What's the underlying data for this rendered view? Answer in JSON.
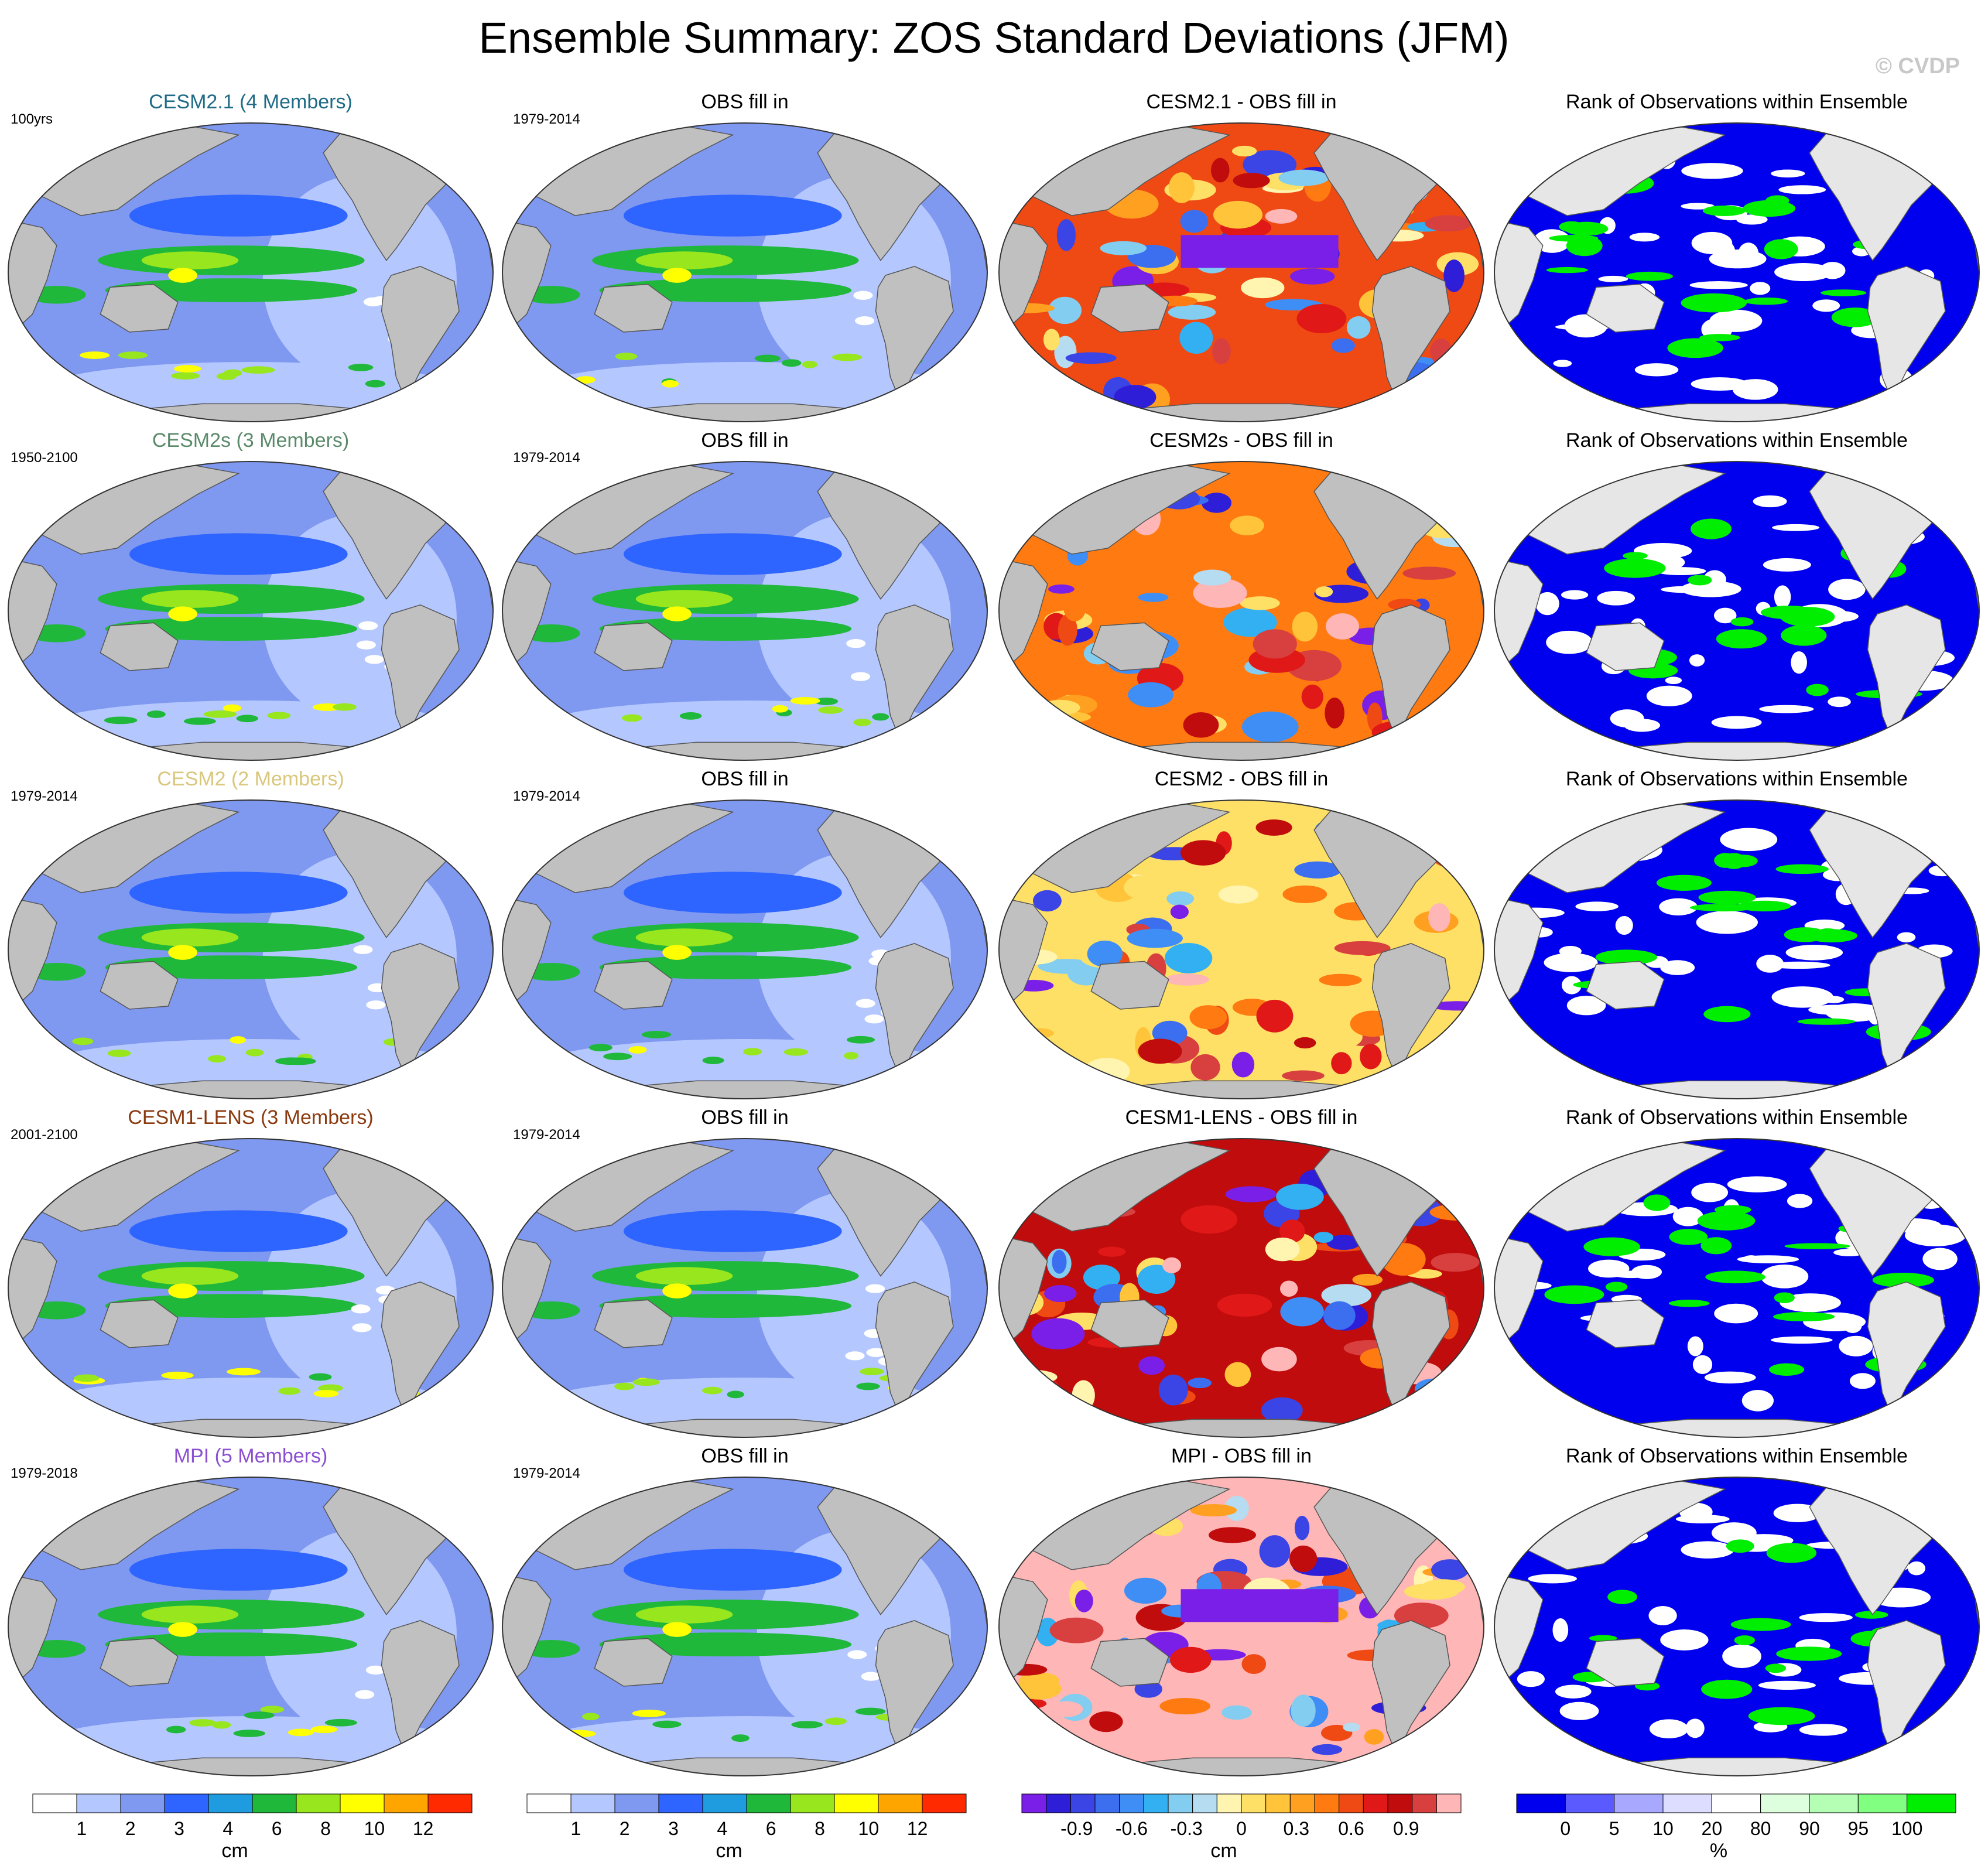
{
  "title": "Ensemble Summary: ZOS Standard Deviations (JFM)",
  "watermark": "© CVDP",
  "panels": [
    [
      {
        "label": "CESM2.1 (4 Members)",
        "color": "#1f6b86",
        "period": "100yrs",
        "field": "std"
      },
      {
        "label": "OBS fill in",
        "period": "1979-2014",
        "field": "std"
      },
      {
        "label": "CESM2.1 - OBS fill in",
        "field": "diff"
      },
      {
        "label": "Rank of Observations within Ensemble",
        "field": "rank"
      }
    ],
    [
      {
        "label": "CESM2s (3 Members)",
        "color": "#5a8a6a",
        "period": "1950-2100",
        "field": "std"
      },
      {
        "label": "OBS fill in",
        "period": "1979-2014",
        "field": "std"
      },
      {
        "label": "CESM2s - OBS fill in",
        "field": "diff"
      },
      {
        "label": "Rank of Observations within Ensemble",
        "field": "rank"
      }
    ],
    [
      {
        "label": "CESM2 (2 Members)",
        "color": "#d9c77c",
        "period": "1979-2014",
        "field": "std"
      },
      {
        "label": "OBS fill in",
        "period": "1979-2014",
        "field": "std"
      },
      {
        "label": "CESM2 - OBS fill in",
        "field": "diff"
      },
      {
        "label": "Rank of Observations within Ensemble",
        "field": "rank"
      }
    ],
    [
      {
        "label": "CESM1-LENS (3 Members)",
        "color": "#8b3a0f",
        "period": "2001-2100",
        "field": "std"
      },
      {
        "label": "OBS fill in",
        "period": "1979-2014",
        "field": "std"
      },
      {
        "label": "CESM1-LENS - OBS fill in",
        "field": "diff"
      },
      {
        "label": "Rank of Observations within Ensemble",
        "field": "rank"
      }
    ],
    [
      {
        "label": "MPI (5 Members)",
        "color": "#8b4fd1",
        "period": "1979-2018",
        "field": "std"
      },
      {
        "label": "OBS fill in",
        "period": "1979-2014",
        "field": "std"
      },
      {
        "label": "MPI - OBS fill in",
        "field": "diff"
      },
      {
        "label": "Rank of Observations within Ensemble",
        "field": "rank"
      }
    ]
  ],
  "colorbars": [
    {
      "unit": "cm",
      "colors": [
        "#ffffff",
        "#b4c7ff",
        "#7f98f0",
        "#2e64ff",
        "#1f9be0",
        "#20b83a",
        "#98e61e",
        "#ffff00",
        "#ffa500",
        "#ff2a00"
      ],
      "ticks": [
        "1",
        "2",
        "3",
        "4",
        "6",
        "8",
        "10",
        "12"
      ]
    },
    {
      "unit": "cm",
      "colors": [
        "#ffffff",
        "#b4c7ff",
        "#7f98f0",
        "#2e64ff",
        "#1f9be0",
        "#20b83a",
        "#98e61e",
        "#ffff00",
        "#ffa500",
        "#ff2a00"
      ],
      "ticks": [
        "1",
        "2",
        "3",
        "4",
        "6",
        "8",
        "10",
        "12"
      ]
    },
    {
      "unit": "cm",
      "colors": [
        "#7a1fe8",
        "#2f1ed8",
        "#3b45e6",
        "#3b6ff0",
        "#3f8ef5",
        "#32b0f2",
        "#83cdf0",
        "#b5dcf0",
        "#fff5b0",
        "#ffe066",
        "#ffc43a",
        "#ffa020",
        "#ff7a10",
        "#f04a14",
        "#e01818",
        "#c00c0c",
        "#d84040",
        "#ffb6b6"
      ],
      "ticks": [
        "-0.9",
        "-0.6",
        "-0.3",
        "0",
        "0.3",
        "0.6",
        "0.9"
      ]
    },
    {
      "unit": "%",
      "colors": [
        "#0000ee",
        "#5a5aff",
        "#a8a8ff",
        "#ddddff",
        "#ffffff",
        "#ddffdd",
        "#b4ffb4",
        "#80ff80",
        "#00ee00"
      ],
      "ticks": [
        "0",
        "5",
        "10",
        "20",
        "80",
        "90",
        "95",
        "100"
      ]
    }
  ],
  "palette": {
    "land": "#c0c0c0",
    "rank_land": "#e6e6e6",
    "coast": "#555555"
  }
}
